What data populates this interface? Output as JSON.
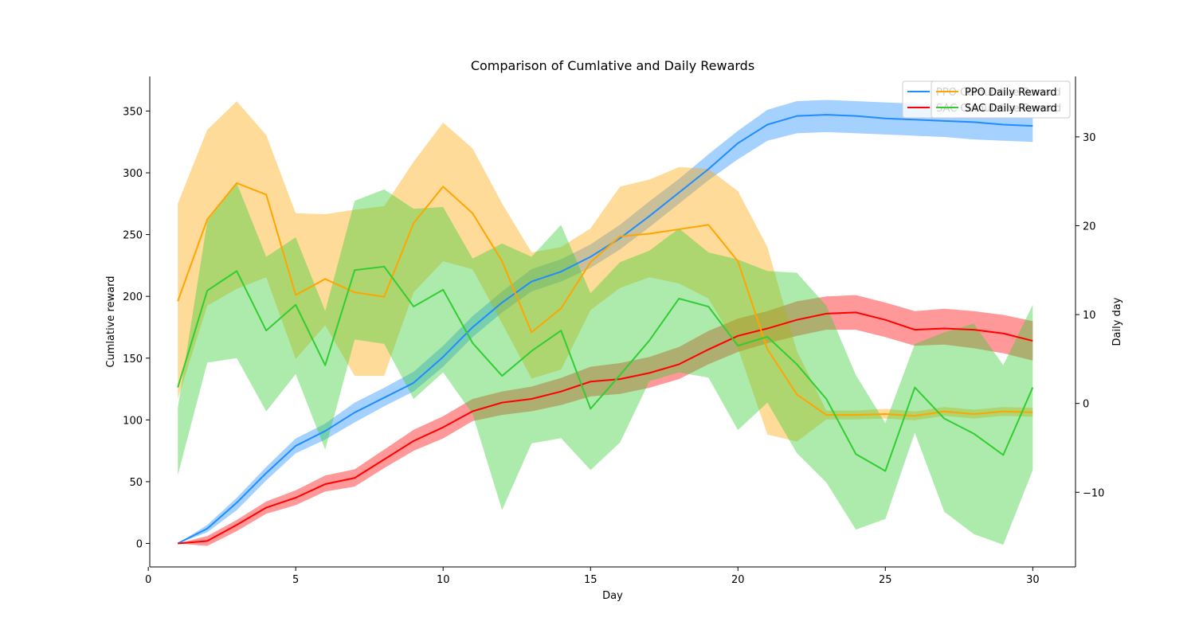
{
  "chart_data": {
    "type": "line",
    "title": "Comparison of Cumlative and Daily Rewards",
    "xlabel": "Day",
    "ylabel_left": "Cumlative reward",
    "ylabel_right": "Daily day",
    "xlim": [
      0.05,
      31.45
    ],
    "ylim_left": [
      -19,
      378
    ],
    "ylim_right": [
      -18.4,
      36.8
    ],
    "x_ticks": [
      0,
      5,
      10,
      15,
      20,
      25,
      30
    ],
    "y_ticks_left": [
      0,
      50,
      100,
      150,
      200,
      250,
      300,
      350
    ],
    "y_ticks_right": [
      -10,
      0,
      10,
      20,
      30
    ],
    "grid": false,
    "legends": [
      {
        "position": "top-right",
        "entries": [
          "PPO Cumulative Reward",
          "SAC Cumulative Reward"
        ]
      },
      {
        "position": "top-right",
        "entries": [
          "PPO Daily Reward",
          "SAC Daily Reward"
        ]
      }
    ],
    "x": [
      1,
      2,
      3,
      4,
      5,
      6,
      7,
      8,
      9,
      10,
      11,
      12,
      13,
      14,
      15,
      16,
      17,
      18,
      19,
      20,
      21,
      22,
      23,
      24,
      25,
      26,
      27,
      28,
      29,
      30
    ],
    "series": [
      {
        "name": "PPO Cumulative Reward",
        "axis": "left",
        "color": "#1f8cff",
        "values": [
          0,
          12,
          33,
          57,
          79,
          91,
          106,
          118,
          130,
          151,
          175,
          195,
          212,
          220,
          232,
          247,
          265,
          284,
          303,
          324,
          339,
          346,
          347,
          346,
          344,
          343,
          342,
          341,
          339,
          338
        ],
        "lower": [
          0,
          9,
          27,
          51,
          73,
          84,
          98,
          111,
          123,
          143,
          167,
          187,
          204,
          212,
          223,
          238,
          256,
          275,
          294,
          311,
          326,
          332,
          333,
          332,
          331,
          330,
          329,
          327,
          326,
          325
        ],
        "upper": [
          0,
          15,
          37,
          62,
          85,
          97,
          114,
          126,
          139,
          160,
          184,
          204,
          222,
          230,
          242,
          258,
          277,
          295,
          315,
          334,
          351,
          358,
          359,
          358,
          357,
          356,
          355,
          353,
          353,
          352
        ]
      },
      {
        "name": "SAC Cumulative Reward",
        "axis": "left",
        "color": "#ff0000",
        "values": [
          0,
          2,
          15,
          29,
          37,
          48,
          53,
          68,
          83,
          94,
          107,
          114,
          117,
          123,
          131,
          133,
          138,
          145,
          157,
          168,
          174,
          181,
          186,
          187,
          181,
          173,
          174,
          173,
          170,
          164
        ],
        "lower": [
          0,
          -2,
          10,
          24,
          31,
          42,
          46,
          61,
          75,
          85,
          99,
          104,
          107,
          112,
          119,
          121,
          126,
          133,
          145,
          155,
          162,
          168,
          173,
          173,
          167,
          160,
          161,
          158,
          154,
          148
        ],
        "upper": [
          0,
          6,
          19,
          34,
          43,
          55,
          60,
          76,
          92,
          103,
          117,
          123,
          127,
          134,
          143,
          146,
          151,
          159,
          172,
          182,
          188,
          196,
          200,
          201,
          195,
          188,
          190,
          188,
          185,
          180
        ]
      },
      {
        "name": "PPO Daily Reward",
        "axis": "right",
        "color": "#ffa500",
        "values": [
          11.5,
          20.7,
          24.8,
          23.5,
          12.2,
          14.0,
          12.5,
          12.0,
          20.3,
          24.4,
          21.4,
          16.0,
          8.0,
          10.7,
          15.9,
          18.8,
          19.1,
          19.6,
          20.1,
          16.0,
          6.1,
          1.0,
          -1.3,
          -1.3,
          -1.2,
          -1.4,
          -0.9,
          -1.2,
          -0.9,
          -1.0
        ],
        "lower": [
          0.5,
          11.0,
          12.9,
          14.2,
          5.0,
          8.8,
          3.1,
          3.1,
          12.5,
          16.0,
          15.1,
          9.0,
          2.8,
          3.8,
          10.5,
          13.0,
          14.2,
          13.5,
          11.8,
          6.2,
          -3.5,
          -4.3,
          -1.8,
          -1.8,
          -1.7,
          -1.9,
          -1.4,
          -1.7,
          -1.4,
          -1.5
        ],
        "upper": [
          22.5,
          30.8,
          34.0,
          30.2,
          21.4,
          21.3,
          21.8,
          22.2,
          27.2,
          31.6,
          28.7,
          22.5,
          17.0,
          17.6,
          19.7,
          24.4,
          25.2,
          26.6,
          26.4,
          23.9,
          17.6,
          5.9,
          -0.8,
          -0.8,
          -0.6,
          -0.9,
          -0.4,
          -0.7,
          -0.4,
          -0.5
        ]
      },
      {
        "name": "SAC Daily Reward",
        "axis": "right",
        "color": "#32cd32",
        "values": [
          1.8,
          12.7,
          14.9,
          8.2,
          11.1,
          4.3,
          15.0,
          15.4,
          10.9,
          12.8,
          6.8,
          3.1,
          5.9,
          8.2,
          -0.6,
          3.2,
          7.1,
          11.8,
          10.9,
          6.5,
          7.5,
          4.4,
          0.5,
          -5.7,
          -7.6,
          1.8,
          -1.7,
          -3.4,
          -5.8,
          1.8
        ],
        "lower": [
          -8.1,
          4.6,
          5.1,
          -0.9,
          3.3,
          -5.2,
          7.2,
          6.7,
          0.5,
          3.5,
          -1.2,
          -12.0,
          -4.5,
          -3.9,
          -7.5,
          -4.4,
          2.5,
          3.5,
          2.9,
          -3.0,
          0.1,
          -5.6,
          -8.9,
          -14.2,
          -13.0,
          -3.3,
          -12.2,
          -14.7,
          -15.9,
          -7.5
        ],
        "upper": [
          -0.5,
          20.5,
          24.8,
          16.5,
          18.7,
          10.4,
          22.8,
          24.1,
          21.9,
          22.1,
          16.3,
          18.0,
          16.5,
          20.1,
          12.4,
          15.9,
          17.2,
          19.7,
          17.0,
          16.2,
          14.9,
          14.7,
          11.0,
          3.2,
          -2.2,
          6.7,
          8.0,
          9.0,
          4.3,
          11.1
        ]
      }
    ]
  }
}
